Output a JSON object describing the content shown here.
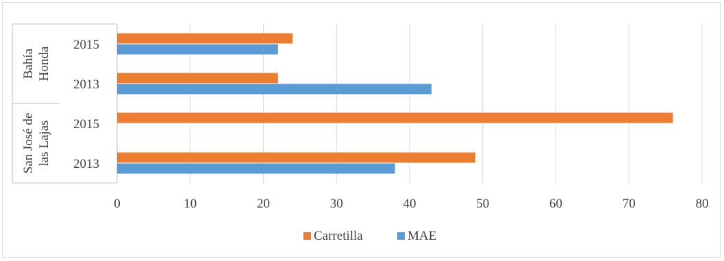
{
  "chart_data": {
    "type": "bar",
    "orientation": "horizontal",
    "title": "",
    "xlabel": "",
    "ylabel": "",
    "xlim": [
      0,
      80
    ],
    "xticks": [
      0,
      10,
      20,
      30,
      40,
      50,
      60,
      70,
      80
    ],
    "grid": true,
    "legend_position": "bottom",
    "groups": [
      {
        "label_lines": [
          "Bahía",
          "Honda"
        ],
        "years": [
          "2015",
          "2013"
        ]
      },
      {
        "label_lines": [
          "San José de",
          "las Lajas"
        ],
        "years": [
          "2015",
          "2013"
        ]
      }
    ],
    "categories": [
      "Bahía Honda 2015",
      "Bahía Honda 2013",
      "San José de las Lajas 2015",
      "San José de las Lajas 2013"
    ],
    "series": [
      {
        "name": "Carretilla",
        "color": "#ed7d31",
        "values": [
          24,
          22,
          76,
          49
        ]
      },
      {
        "name": "MAE",
        "color": "#5b9bd5",
        "values": [
          22,
          43,
          0,
          38
        ]
      }
    ]
  }
}
